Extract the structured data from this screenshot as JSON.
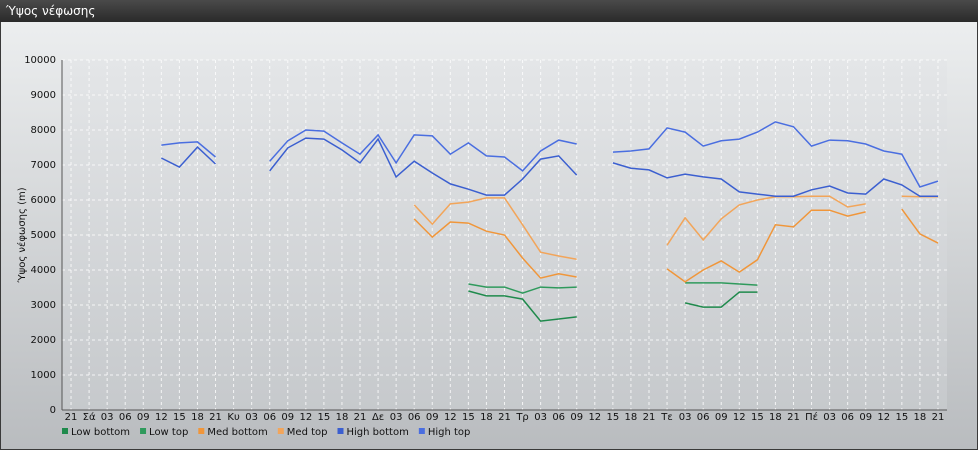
{
  "window_title": "Ύψος νέφωσης",
  "chart_data": {
    "type": "line",
    "y_label": "Ύψος νέφωσης (m)",
    "categories": [
      "21",
      "Σά",
      "03",
      "06",
      "09",
      "12",
      "15",
      "18",
      "21",
      "Κυ",
      "03",
      "06",
      "09",
      "12",
      "15",
      "18",
      "21",
      "Δε",
      "03",
      "06",
      "09",
      "12",
      "15",
      "18",
      "21",
      "Τρ",
      "03",
      "06",
      "09",
      "12",
      "15",
      "18",
      "21",
      "Τε",
      "03",
      "06",
      "09",
      "12",
      "15",
      "18",
      "21",
      "Πέ",
      "03",
      "06",
      "09",
      "12",
      "15",
      "18",
      "21"
    ],
    "ylim": [
      0,
      10000
    ],
    "yticks": [
      0,
      1000,
      2000,
      3000,
      4000,
      5000,
      6000,
      7000,
      8000,
      9000,
      10000
    ],
    "grid": true,
    "legend": "bottom",
    "series": [
      {
        "name": "Low bottom",
        "color": "#1f8a4c",
        "values": [
          null,
          null,
          null,
          null,
          null,
          null,
          null,
          null,
          null,
          null,
          null,
          null,
          null,
          null,
          null,
          null,
          null,
          null,
          null,
          null,
          null,
          null,
          3400,
          3260,
          3260,
          3170,
          2540,
          2600,
          2660,
          null,
          null,
          null,
          null,
          null,
          3060,
          2940,
          2940,
          3370,
          3370,
          null,
          null,
          null,
          null,
          null,
          null,
          null,
          null,
          null,
          null
        ]
      },
      {
        "name": "Low top",
        "color": "#2f9a5c",
        "values": [
          null,
          null,
          null,
          null,
          null,
          null,
          null,
          null,
          null,
          null,
          null,
          null,
          null,
          null,
          null,
          null,
          null,
          null,
          null,
          null,
          null,
          null,
          3600,
          3510,
          3510,
          3340,
          3510,
          3490,
          3510,
          null,
          null,
          null,
          null,
          null,
          3630,
          3630,
          3630,
          3600,
          3570,
          null,
          null,
          null,
          null,
          null,
          null,
          null,
          null,
          null,
          null
        ]
      },
      {
        "name": "Med bottom",
        "color": "#f0963a",
        "values": [
          null,
          null,
          null,
          null,
          null,
          null,
          null,
          null,
          null,
          null,
          null,
          null,
          null,
          null,
          null,
          null,
          null,
          null,
          null,
          5460,
          4940,
          5370,
          5340,
          5110,
          5000,
          4340,
          3770,
          3890,
          3800,
          null,
          null,
          null,
          null,
          4030,
          3660,
          4000,
          4260,
          3940,
          4290,
          5290,
          5230,
          5710,
          5710,
          5540,
          5660,
          null,
          5740,
          5030,
          4770
        ]
      },
      {
        "name": "Med top",
        "color": "#f2a55a",
        "values": [
          null,
          null,
          null,
          null,
          null,
          null,
          null,
          null,
          null,
          null,
          null,
          null,
          null,
          null,
          null,
          null,
          null,
          null,
          null,
          5860,
          5310,
          5890,
          5940,
          6060,
          6060,
          5290,
          4510,
          4400,
          4310,
          null,
          null,
          null,
          null,
          4710,
          5490,
          4860,
          5460,
          5860,
          6000,
          6090,
          6090,
          6110,
          6110,
          5800,
          5890,
          null,
          6110,
          6090,
          6090
        ]
      },
      {
        "name": "High bottom",
        "color": "#3b5fd0",
        "values": [
          null,
          null,
          null,
          null,
          null,
          7200,
          6940,
          7510,
          7030,
          null,
          null,
          6830,
          7490,
          7770,
          7740,
          7430,
          7060,
          7740,
          6660,
          7110,
          6770,
          6460,
          6310,
          6140,
          6140,
          6600,
          7170,
          7260,
          6710,
          null,
          7060,
          6910,
          6860,
          6630,
          6740,
          6660,
          6600,
          6230,
          6170,
          6110,
          6110,
          6290,
          6400,
          6200,
          6170,
          6600,
          6430,
          6110,
          6110
        ]
      },
      {
        "name": "High top",
        "color": "#4a6ee0",
        "values": [
          null,
          null,
          null,
          null,
          null,
          7570,
          7630,
          7660,
          7230,
          null,
          null,
          7110,
          7690,
          8000,
          7970,
          7630,
          7310,
          7860,
          7060,
          7860,
          7830,
          7310,
          7630,
          7260,
          7230,
          6830,
          7400,
          7710,
          7600,
          null,
          7370,
          7400,
          7460,
          8060,
          7940,
          7540,
          7690,
          7740,
          7940,
          8230,
          8090,
          7540,
          7710,
          7690,
          7600,
          7400,
          7310,
          6370,
          6540
        ]
      }
    ]
  }
}
